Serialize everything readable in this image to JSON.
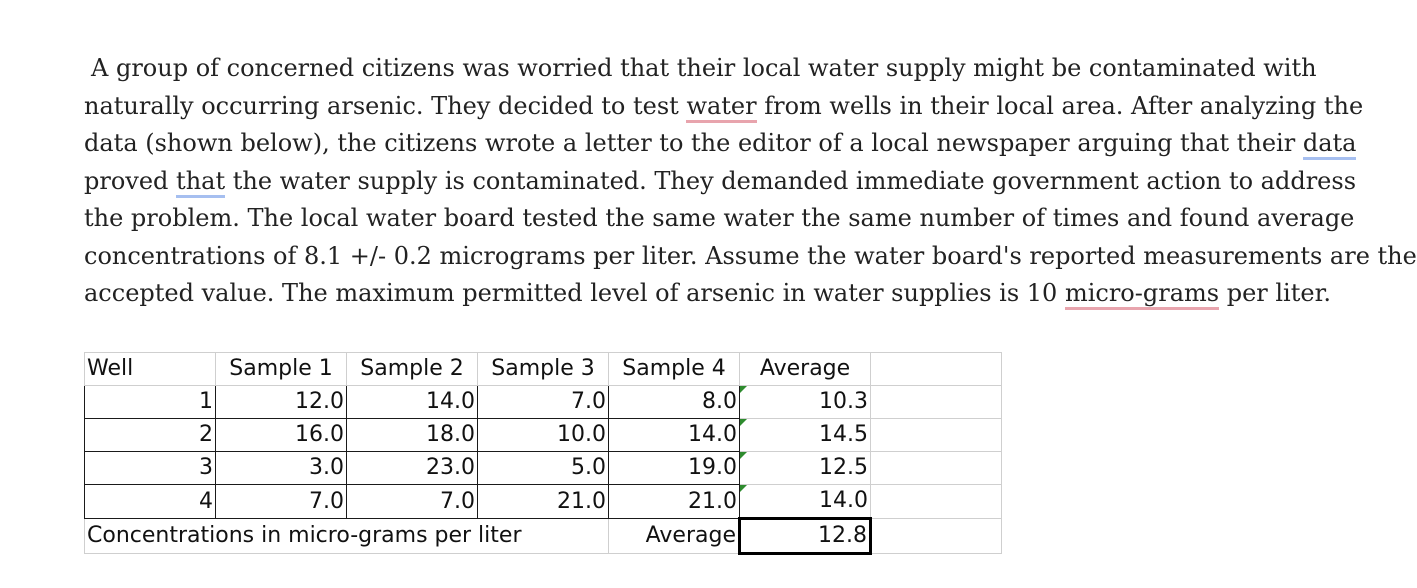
{
  "paragraph": {
    "lines": [
      "A group of concerned citizens was worried that their local water supply might be contaminated with",
      [
        "naturally occurring arsenic. They decided to test ",
        "water",
        " from wells in their local area. After analyzing the"
      ],
      [
        "data (shown below), the citizens wrote a letter to the editor of a local newspaper arguing that their ",
        "data"
      ],
      [
        "proved ",
        "that",
        " the water supply is contaminated. They demanded immediate government action to address"
      ],
      "the problem. The local water board tested the same water the same number of times and found average",
      "concentrations of 8.1 +/- 0.2 micrograms per liter. Assume the water board's reported measurements are the",
      [
        "accepted value. The maximum permitted level of arsenic in water supplies is 10 ",
        "micro-grams",
        " per liter."
      ]
    ]
  },
  "table": {
    "headers": [
      "Well",
      "Sample 1",
      "Sample 2",
      "Sample 3",
      "Sample 4",
      "Average"
    ],
    "rows": [
      [
        "1",
        "12.0",
        "14.0",
        "7.0",
        "8.0",
        "10.3"
      ],
      [
        "2",
        "16.0",
        "18.0",
        "10.0",
        "14.0",
        "14.5"
      ],
      [
        "3",
        "3.0",
        "23.0",
        "5.0",
        "19.0",
        "12.5"
      ],
      [
        "4",
        "7.0",
        "7.0",
        "21.0",
        "21.0",
        "14.0"
      ]
    ],
    "footer_note": "Concentrations in micro-grams per liter",
    "footer_label": "Average",
    "footer_value": "12.8"
  },
  "colors": {
    "spell_underline": "#e8a4ad",
    "grammar_underline": "#a6bff0",
    "error_triangle": "#2e8b2e"
  }
}
